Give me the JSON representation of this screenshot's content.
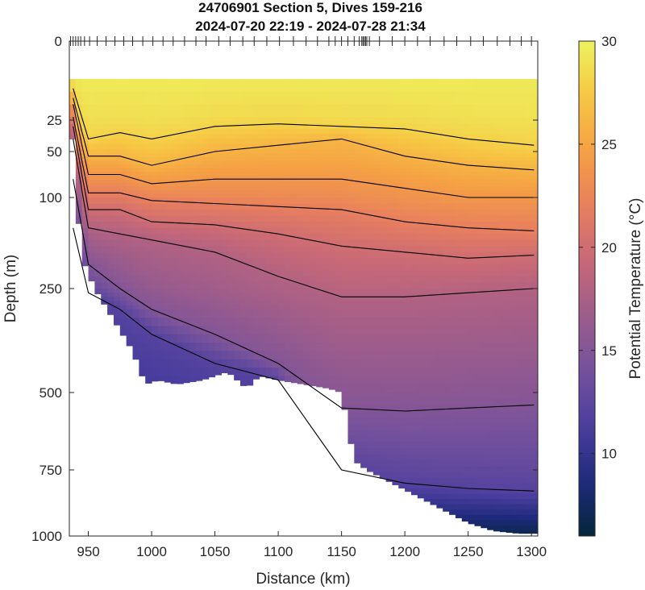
{
  "chart_data": {
    "type": "heatmap",
    "title": "24706901 Section 5, Dives 159-216",
    "subtitle": "2024-07-20 22:19 - 2024-07-28 21:34",
    "xlabel": "Distance (km)",
    "ylabel": "Depth (m)",
    "xlim": [
      935,
      1305
    ],
    "x_ticks": [
      "950",
      "1000",
      "1050",
      "1100",
      "1150",
      "1200",
      "1250",
      "1300"
    ],
    "y_ticks": [
      "0",
      "25",
      "50",
      "100",
      "250",
      "500",
      "750",
      "1000"
    ],
    "y_axis_reversed": true,
    "y_axis_note": "non-linear (compressed near surface)",
    "colorbar": {
      "label": "Potential Temperature (°C)",
      "range": [
        6,
        30
      ],
      "ticks": [
        "10",
        "15",
        "20",
        "25",
        "30"
      ],
      "colormap": "thermal",
      "colors": [
        "#04263a",
        "#1f2a7c",
        "#4b3e9e",
        "#74519d",
        "#9c5c8c",
        "#c76878",
        "#e87f5e",
        "#f5a044",
        "#f7c744",
        "#ecf25d"
      ]
    },
    "contour_color": "#000000",
    "surface_top_depth_m": 12,
    "surface_temperature_c": 29.5,
    "bottom_depth_profile": {
      "x": [
        938,
        945,
        955,
        965,
        975,
        985,
        995,
        1005,
        1020,
        1040,
        1060,
        1075,
        1085,
        1100,
        1120,
        1140,
        1150,
        1160,
        1170,
        1190,
        1210,
        1230,
        1250,
        1270,
        1290,
        1302
      ],
      "depth": [
        40,
        200,
        250,
        300,
        350,
        400,
        480,
        470,
        480,
        470,
        450,
        490,
        460,
        470,
        480,
        490,
        500,
        720,
        750,
        800,
        850,
        900,
        950,
        980,
        990,
        990
      ]
    },
    "isotherms_depth_m": [
      {
        "temp_c": 28,
        "x": [
          938,
          950,
          975,
          1000,
          1050,
          1100,
          1150,
          1200,
          1250,
          1302
        ],
        "depth": [
          15,
          40,
          35,
          40,
          30,
          28,
          30,
          32,
          40,
          45
        ]
      },
      {
        "temp_c": 26,
        "x": [
          938,
          950,
          975,
          1000,
          1050,
          1100,
          1150,
          1200,
          1250,
          1302
        ],
        "depth": [
          18,
          55,
          55,
          65,
          50,
          45,
          40,
          55,
          65,
          70
        ]
      },
      {
        "temp_c": 24,
        "x": [
          938,
          950,
          975,
          1000,
          1050,
          1100,
          1150,
          1200,
          1250,
          1302
        ],
        "depth": [
          20,
          75,
          75,
          85,
          80,
          80,
          80,
          90,
          100,
          100
        ]
      },
      {
        "temp_c": 22,
        "x": [
          938,
          950,
          975,
          1000,
          1050,
          1100,
          1150,
          1200,
          1250,
          1302
        ],
        "depth": [
          24,
          95,
          95,
          105,
          110,
          115,
          120,
          140,
          150,
          155
        ]
      },
      {
        "temp_c": 20,
        "x": [
          938,
          950,
          975,
          1000,
          1050,
          1100,
          1150,
          1200,
          1250,
          1302
        ],
        "depth": [
          30,
          120,
          120,
          140,
          145,
          160,
          180,
          190,
          200,
          195
        ]
      },
      {
        "temp_c": 18,
        "x": [
          938,
          950,
          975,
          1000,
          1050,
          1100,
          1150,
          1200,
          1250,
          1302
        ],
        "depth": [
          40,
          150,
          160,
          170,
          190,
          230,
          270,
          270,
          260,
          250
        ]
      },
      {
        "temp_c": 15,
        "x": [
          938,
          950,
          975,
          1000,
          1050,
          1100,
          1150,
          1200,
          1250,
          1302
        ],
        "depth": [
          80,
          210,
          250,
          300,
          360,
          430,
          550,
          560,
          550,
          540
        ]
      },
      {
        "temp_c": 12,
        "x": [
          938,
          950,
          975,
          1000,
          1050,
          1100,
          1150,
          1200,
          1250,
          1302
        ],
        "depth": [
          150,
          260,
          300,
          360,
          430,
          470,
          750,
          800,
          820,
          830
        ]
      }
    ],
    "dive_tick_positions_km": [
      936,
      938,
      940,
      942,
      944,
      947,
      951,
      957,
      964,
      971,
      978,
      985,
      993,
      1001,
      1009,
      1017,
      1026,
      1035,
      1043,
      1053,
      1062,
      1072,
      1081,
      1091,
      1101,
      1112,
      1122,
      1131,
      1140,
      1145,
      1150,
      1155,
      1160,
      1164,
      1166,
      1167,
      1168,
      1169,
      1170,
      1172,
      1180,
      1190,
      1200,
      1210,
      1220,
      1231,
      1241,
      1252,
      1262,
      1273,
      1283,
      1292,
      1300
    ]
  }
}
